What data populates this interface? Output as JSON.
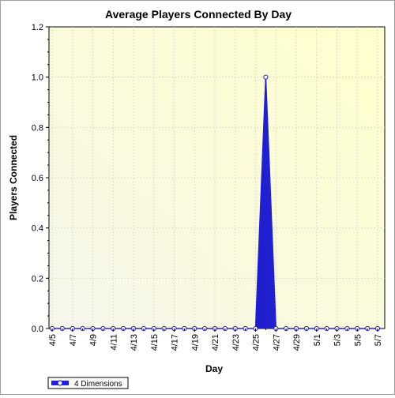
{
  "chart_data": {
    "type": "area",
    "title": "Average Players Connected By Day",
    "xlabel": "Day",
    "ylabel": "Players Connected",
    "ylim": [
      0,
      1.2
    ],
    "y_ticks": [
      "0.0",
      "0.2",
      "0.4",
      "0.6",
      "0.8",
      "1.0",
      "1.2"
    ],
    "x_tick_labels": [
      "4/5",
      "4/7",
      "4/9",
      "4/11",
      "4/13",
      "4/15",
      "4/17",
      "4/19",
      "4/21",
      "4/23",
      "4/25",
      "4/27",
      "4/29",
      "5/1",
      "5/3",
      "5/5",
      "5/7"
    ],
    "categories": [
      "4/5",
      "4/6",
      "4/7",
      "4/8",
      "4/9",
      "4/10",
      "4/11",
      "4/12",
      "4/13",
      "4/14",
      "4/15",
      "4/16",
      "4/17",
      "4/18",
      "4/19",
      "4/20",
      "4/21",
      "4/22",
      "4/23",
      "4/24",
      "4/25",
      "4/26",
      "4/27",
      "4/28",
      "4/29",
      "4/30",
      "5/1",
      "5/2",
      "5/3",
      "5/4",
      "5/5",
      "5/6",
      "5/7"
    ],
    "series": [
      {
        "name": "4 Dimensions",
        "color": "#2020e0",
        "values": [
          0,
          0,
          0,
          0,
          0,
          0,
          0,
          0,
          0,
          0,
          0,
          0,
          0,
          0,
          0,
          0,
          0,
          0,
          0,
          0,
          0,
          1.0,
          0,
          0,
          0,
          0,
          0,
          0,
          0,
          0,
          0,
          0,
          0
        ]
      }
    ],
    "grid": true,
    "legend": "bottom-left"
  }
}
